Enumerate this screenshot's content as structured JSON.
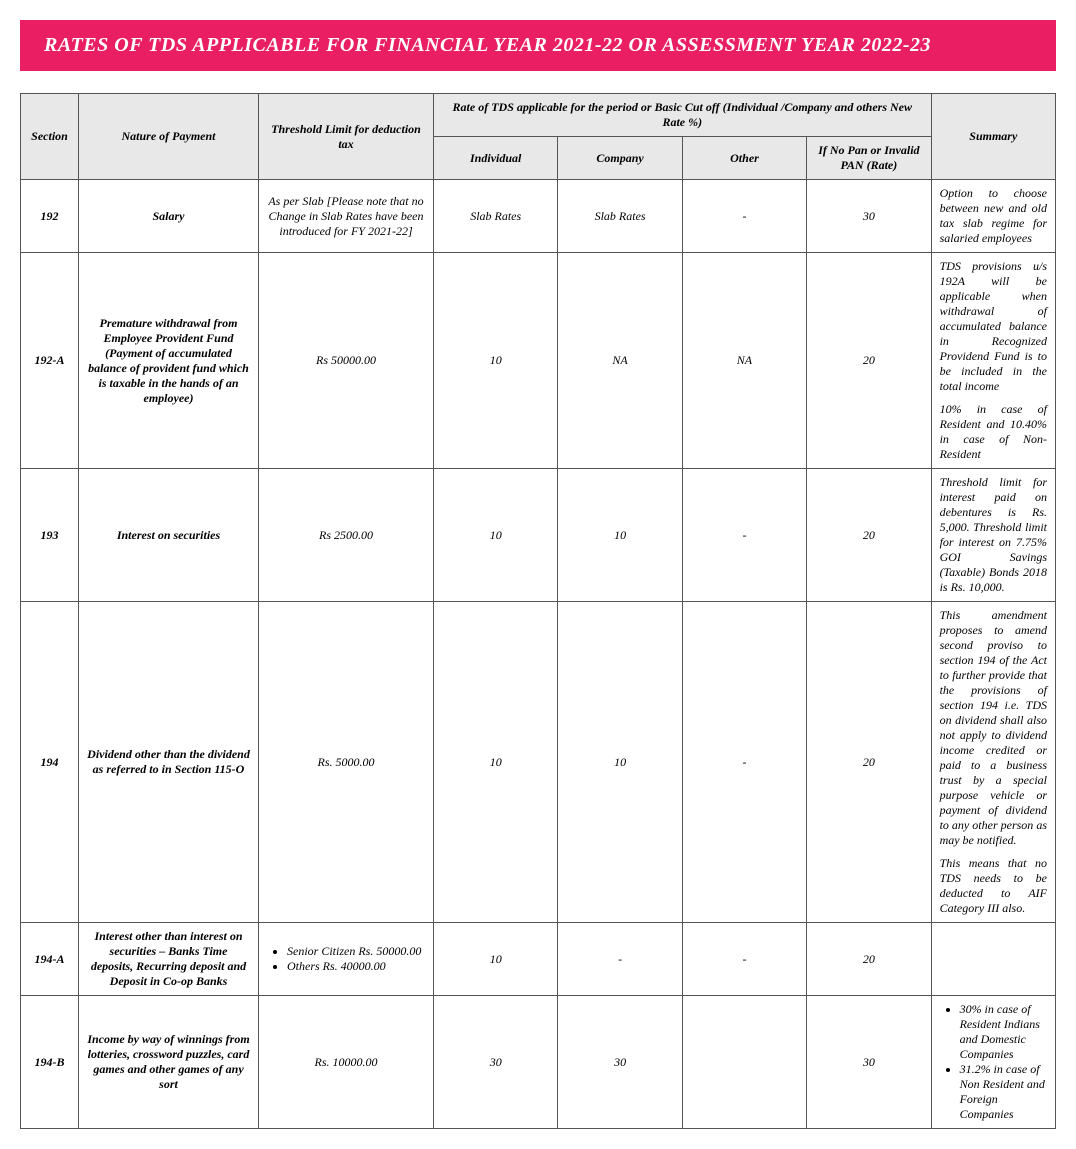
{
  "title": "RATES OF TDS APPLICABLE FOR FINANCIAL YEAR 2021-22 OR ASSESSMENT YEAR 2022-23",
  "colors": {
    "banner_bg": "#e91e63",
    "banner_text": "#ffffff",
    "header_bg": "#e8e8e8",
    "border": "#555555",
    "cell_bg": "#ffffff"
  },
  "typography": {
    "title_fontsize": 20,
    "cell_fontsize": 12,
    "font_family": "Georgia, serif",
    "style": "italic"
  },
  "table": {
    "header_group": "Rate of TDS applicable for the period or Basic Cut off (Individual /Company and others New Rate %)",
    "headers": {
      "section": "Section",
      "nature": "Nature of Payment",
      "threshold": "Threshold Limit for deduction tax",
      "individual": "Individual",
      "company": "Company",
      "other": "Other",
      "nopan": "If No Pan or Invalid PAN (Rate)",
      "summary": "Summary"
    },
    "rows": [
      {
        "section": "192",
        "nature": "Salary",
        "threshold": "As per Slab [Please note that no Change in Slab Rates have been introduced for FY 2021-22]",
        "individual": "Slab Rates",
        "company": "Slab Rates",
        "other": "-",
        "nopan": "30",
        "summary": [
          "Option to choose between new and old tax slab regime for salaried employees"
        ]
      },
      {
        "section": "192-A",
        "nature": "Premature withdrawal from Employee Provident Fund (Payment of accumulated balance of provident fund which is taxable in the hands of an employee)",
        "threshold": "Rs 50000.00",
        "individual": "10",
        "company": "NA",
        "other": "NA",
        "nopan": "20",
        "summary": [
          "TDS provisions u/s 192A will be applicable when withdrawal of accumulated balance in Recognized Providend Fund is to be included in the total income",
          "10% in case of Resident and 10.40% in case of Non-Resident"
        ]
      },
      {
        "section": "193",
        "nature": "Interest on securities",
        "threshold": "Rs 2500.00",
        "individual": "10",
        "company": "10",
        "other": "-",
        "nopan": "20",
        "summary": [
          "Threshold limit for interest paid on debentures is Rs. 5,000. Threshold limit for interest on 7.75% GOI Savings (Taxable) Bonds 2018 is Rs. 10,000."
        ]
      },
      {
        "section": "194",
        "nature": "Dividend other than the dividend as referred to in Section 115-O",
        "threshold": "Rs. 5000.00",
        "individual": "10",
        "company": "10",
        "other": "-",
        "nopan": "20",
        "summary": [
          "This amendment proposes to amend second proviso to section 194 of the Act to further provide that the provisions of section 194 i.e. TDS on dividend shall also not apply to dividend income credited or paid to a business trust by a special purpose vehicle or payment of dividend to any other person as may be notified.",
          "This means that no TDS needs to be deducted to AIF Category III also."
        ]
      },
      {
        "section": "194-A",
        "nature": "Interest other than interest on securities – Banks Time deposits, Recurring deposit and Deposit in Co-op Banks",
        "threshold_list": [
          "Senior Citizen Rs. 50000.00",
          "Others Rs. 40000.00"
        ],
        "individual": "10",
        "company": "-",
        "other": "-",
        "nopan": "20",
        "summary": []
      },
      {
        "section": "194-B",
        "nature": "Income by way of winnings from lotteries, crossword puzzles, card games and other games of any sort",
        "threshold": "Rs. 10000.00",
        "individual": "30",
        "company": "30",
        "other": "",
        "nopan": "30",
        "summary_list": [
          "30% in case of Resident Indians and Domestic Companies",
          "31.2% in case of Non Resident and Foreign Companies"
        ]
      }
    ]
  }
}
